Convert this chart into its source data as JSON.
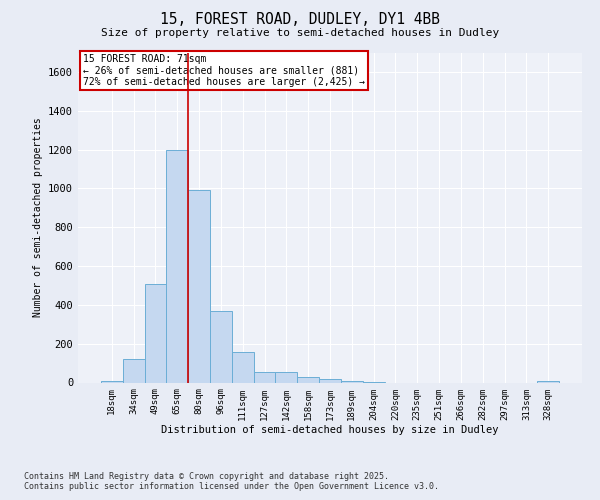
{
  "title_line1": "15, FOREST ROAD, DUDLEY, DY1 4BB",
  "title_line2": "Size of property relative to semi-detached houses in Dudley",
  "xlabel": "Distribution of semi-detached houses by size in Dudley",
  "ylabel": "Number of semi-detached properties",
  "footnote_line1": "Contains HM Land Registry data © Crown copyright and database right 2025.",
  "footnote_line2": "Contains public sector information licensed under the Open Government Licence v3.0.",
  "annotation_title": "15 FOREST ROAD: 71sqm",
  "annotation_line1": "← 26% of semi-detached houses are smaller (881)",
  "annotation_line2": "72% of semi-detached houses are larger (2,425) →",
  "bar_color": "#c5d8f0",
  "bar_edge_color": "#6baed6",
  "highlight_color": "#cc0000",
  "categories": [
    "18sqm",
    "34sqm",
    "49sqm",
    "65sqm",
    "80sqm",
    "96sqm",
    "111sqm",
    "127sqm",
    "142sqm",
    "158sqm",
    "173sqm",
    "189sqm",
    "204sqm",
    "220sqm",
    "235sqm",
    "251sqm",
    "266sqm",
    "282sqm",
    "297sqm",
    "313sqm",
    "328sqm"
  ],
  "values": [
    10,
    120,
    510,
    1200,
    990,
    370,
    155,
    55,
    55,
    30,
    20,
    10,
    5,
    0,
    0,
    0,
    0,
    0,
    0,
    0,
    10
  ],
  "ylim": [
    0,
    1700
  ],
  "yticks": [
    0,
    200,
    400,
    600,
    800,
    1000,
    1200,
    1400,
    1600
  ],
  "red_line_x": 3.5,
  "bg_color": "#e8ecf5",
  "plot_bg_color": "#eef1f8"
}
